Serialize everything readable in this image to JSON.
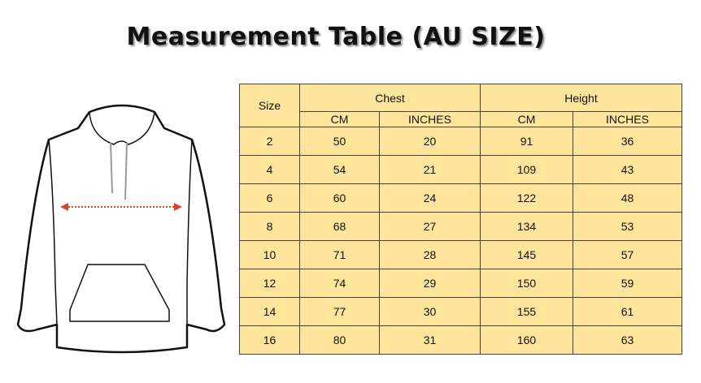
{
  "title": "Measurement Table (AU SIZE)",
  "table": {
    "size_label": "Size",
    "groups": [
      "Chest",
      "Height"
    ],
    "units": [
      "CM",
      "INCHES",
      "CM",
      "INCHES"
    ],
    "rows": [
      [
        "2",
        "50",
        "20",
        "91",
        "36"
      ],
      [
        "4",
        "54",
        "21",
        "109",
        "43"
      ],
      [
        "6",
        "60",
        "24",
        "122",
        "48"
      ],
      [
        "8",
        "68",
        "27",
        "134",
        "53"
      ],
      [
        "10",
        "71",
        "28",
        "145",
        "57"
      ],
      [
        "12",
        "74",
        "29",
        "150",
        "59"
      ],
      [
        "14",
        "77",
        "30",
        "155",
        "61"
      ],
      [
        "16",
        "80",
        "31",
        "160",
        "63"
      ]
    ]
  },
  "colors": {
    "table_bg": "#ffe59c",
    "arrow": "#d9452b"
  }
}
